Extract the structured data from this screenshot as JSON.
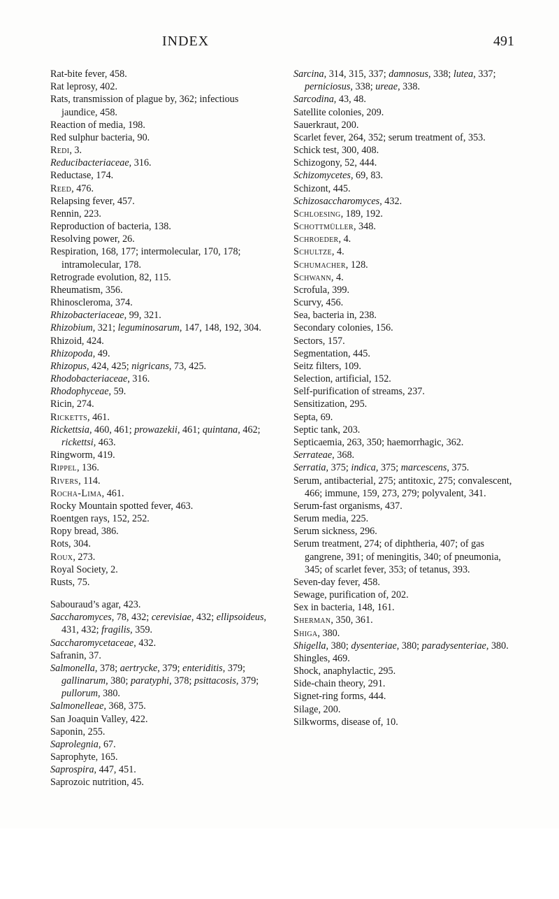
{
  "header": {
    "title": "INDEX",
    "page_number": "491"
  },
  "left_column": [
    {
      "segs": [
        {
          "t": "Rat-bite fever, 458."
        }
      ]
    },
    {
      "segs": [
        {
          "t": "Rat leprosy, 402."
        }
      ]
    },
    {
      "segs": [
        {
          "t": "Rats, transmission of plague by, 362; infectious jaundice, 458."
        }
      ]
    },
    {
      "segs": [
        {
          "t": "Reaction of media, 198."
        }
      ]
    },
    {
      "segs": [
        {
          "t": "Red sulphur bacteria, 90."
        }
      ]
    },
    {
      "segs": [
        {
          "t": "Redi",
          "cls": "sc"
        },
        {
          "t": ", 3."
        }
      ]
    },
    {
      "segs": [
        {
          "t": "Reducibacteriaceae",
          "cls": "italic"
        },
        {
          "t": ", 316."
        }
      ]
    },
    {
      "segs": [
        {
          "t": "Reductase, 174."
        }
      ]
    },
    {
      "segs": [
        {
          "t": "Reed",
          "cls": "sc"
        },
        {
          "t": ", 476."
        }
      ]
    },
    {
      "segs": [
        {
          "t": "Relapsing fever, 457."
        }
      ]
    },
    {
      "segs": [
        {
          "t": "Rennin, 223."
        }
      ]
    },
    {
      "segs": [
        {
          "t": "Reproduction of bacteria, 138."
        }
      ]
    },
    {
      "segs": [
        {
          "t": "Resolving power, 26."
        }
      ]
    },
    {
      "segs": [
        {
          "t": "Respiration, 168, 177; intermolecular, 170, 178; intramolecular, 178."
        }
      ]
    },
    {
      "segs": [
        {
          "t": "Retrograde evolution, 82, 115."
        }
      ]
    },
    {
      "segs": [
        {
          "t": "Rheumatism, 356."
        }
      ]
    },
    {
      "segs": [
        {
          "t": "Rhinoscleroma, 374."
        }
      ]
    },
    {
      "segs": [
        {
          "t": "Rhizobacteriaceae",
          "cls": "italic"
        },
        {
          "t": ", 99, 321."
        }
      ]
    },
    {
      "segs": [
        {
          "t": "Rhizobium",
          "cls": "italic"
        },
        {
          "t": ", 321; "
        },
        {
          "t": "leguminosarum",
          "cls": "italic"
        },
        {
          "t": ", 147, 148, 192, 304."
        }
      ]
    },
    {
      "segs": [
        {
          "t": "Rhizoid, 424."
        }
      ]
    },
    {
      "segs": [
        {
          "t": "Rhizopoda",
          "cls": "italic"
        },
        {
          "t": ", 49."
        }
      ]
    },
    {
      "segs": [
        {
          "t": "Rhizopus",
          "cls": "italic"
        },
        {
          "t": ", 424, 425; "
        },
        {
          "t": "nigricans",
          "cls": "italic"
        },
        {
          "t": ", 73, 425."
        }
      ]
    },
    {
      "segs": [
        {
          "t": "Rhodobacteriaceae",
          "cls": "italic"
        },
        {
          "t": ", 316."
        }
      ]
    },
    {
      "segs": [
        {
          "t": "Rhodophyceae",
          "cls": "italic"
        },
        {
          "t": ", 59."
        }
      ]
    },
    {
      "segs": [
        {
          "t": "Ricin, 274."
        }
      ]
    },
    {
      "segs": [
        {
          "t": "Ricketts",
          "cls": "sc"
        },
        {
          "t": ", 461."
        }
      ]
    },
    {
      "segs": [
        {
          "t": "Rickettsia",
          "cls": "italic"
        },
        {
          "t": ", 460, 461; "
        },
        {
          "t": "prowazekii",
          "cls": "italic"
        },
        {
          "t": ", 461; "
        },
        {
          "t": "quintana",
          "cls": "italic"
        },
        {
          "t": ", 462; "
        },
        {
          "t": "rickettsi",
          "cls": "italic"
        },
        {
          "t": ", 463."
        }
      ]
    },
    {
      "segs": [
        {
          "t": "Ringworm, 419."
        }
      ]
    },
    {
      "segs": [
        {
          "t": "Rippel",
          "cls": "sc"
        },
        {
          "t": ", 136."
        }
      ]
    },
    {
      "segs": [
        {
          "t": "Rivers",
          "cls": "sc"
        },
        {
          "t": ", 114."
        }
      ]
    },
    {
      "segs": [
        {
          "t": "Rocha-Lima",
          "cls": "sc"
        },
        {
          "t": ", 461."
        }
      ]
    },
    {
      "segs": [
        {
          "t": "Rocky Mountain spotted fever, 463."
        }
      ]
    },
    {
      "segs": [
        {
          "t": "Roentgen rays, 152, 252."
        }
      ]
    },
    {
      "segs": [
        {
          "t": "Ropy bread, 386."
        }
      ]
    },
    {
      "segs": [
        {
          "t": "Rots, 304."
        }
      ]
    },
    {
      "segs": [
        {
          "t": "Roux",
          "cls": "sc"
        },
        {
          "t": ", 273."
        }
      ]
    },
    {
      "segs": [
        {
          "t": "Royal Society, 2."
        }
      ]
    },
    {
      "segs": [
        {
          "t": "Rusts, 75."
        }
      ]
    },
    {
      "gap": true
    },
    {
      "segs": [
        {
          "t": "Sabouraud’s agar, 423."
        }
      ]
    },
    {
      "segs": [
        {
          "t": "Saccharomyces",
          "cls": "italic"
        },
        {
          "t": ", 78, 432; "
        },
        {
          "t": "cerevisiae",
          "cls": "italic"
        },
        {
          "t": ", 432; "
        },
        {
          "t": "ellipsoideus",
          "cls": "italic"
        },
        {
          "t": ", 431, 432; "
        },
        {
          "t": "fragilis",
          "cls": "italic"
        },
        {
          "t": ", 359."
        }
      ]
    },
    {
      "segs": [
        {
          "t": "Saccharomycetaceae",
          "cls": "italic"
        },
        {
          "t": ", 432."
        }
      ]
    },
    {
      "segs": [
        {
          "t": "Safranin, 37."
        }
      ]
    },
    {
      "segs": [
        {
          "t": "Salmonella",
          "cls": "italic"
        },
        {
          "t": ", 378; "
        },
        {
          "t": "aertrycke",
          "cls": "italic"
        },
        {
          "t": ", 379; "
        },
        {
          "t": "enteriditis",
          "cls": "italic"
        },
        {
          "t": ", 379; "
        },
        {
          "t": "gallinarum",
          "cls": "italic"
        },
        {
          "t": ", 380; "
        },
        {
          "t": "paratyphi",
          "cls": "italic"
        },
        {
          "t": ", 378; "
        },
        {
          "t": "psittacosis",
          "cls": "italic"
        },
        {
          "t": ", 379; "
        },
        {
          "t": "pullorum",
          "cls": "italic"
        },
        {
          "t": ", 380."
        }
      ]
    },
    {
      "segs": [
        {
          "t": "Salmonelleae",
          "cls": "italic"
        },
        {
          "t": ", 368, 375."
        }
      ]
    },
    {
      "segs": [
        {
          "t": "San Joaquin Valley, 422."
        }
      ]
    },
    {
      "segs": [
        {
          "t": "Saponin, 255."
        }
      ]
    },
    {
      "segs": [
        {
          "t": "Saprolegnia",
          "cls": "italic"
        },
        {
          "t": ", 67."
        }
      ]
    },
    {
      "segs": [
        {
          "t": "Saprophyte, 165."
        }
      ]
    },
    {
      "segs": [
        {
          "t": "Saprospira",
          "cls": "italic"
        },
        {
          "t": ", 447, 451."
        }
      ]
    },
    {
      "segs": [
        {
          "t": "Saprozoic nutrition, 45."
        }
      ]
    }
  ],
  "right_column": [
    {
      "segs": [
        {
          "t": "Sarcina",
          "cls": "italic"
        },
        {
          "t": ", 314, 315, 337; "
        },
        {
          "t": "damnosus",
          "cls": "italic"
        },
        {
          "t": ", 338; "
        },
        {
          "t": "lutea",
          "cls": "italic"
        },
        {
          "t": ", 337; "
        },
        {
          "t": "perniciosus",
          "cls": "italic"
        },
        {
          "t": ", 338; "
        },
        {
          "t": "ureae",
          "cls": "italic"
        },
        {
          "t": ", 338."
        }
      ]
    },
    {
      "segs": [
        {
          "t": "Sarcodina",
          "cls": "italic"
        },
        {
          "t": ", 43, 48."
        }
      ]
    },
    {
      "segs": [
        {
          "t": "Satellite colonies, 209."
        }
      ]
    },
    {
      "segs": [
        {
          "t": "Sauerkraut, 200."
        }
      ]
    },
    {
      "segs": [
        {
          "t": "Scarlet fever, 264, 352; serum treatment of, 353."
        }
      ]
    },
    {
      "segs": [
        {
          "t": "Schick test, 300, 408."
        }
      ]
    },
    {
      "segs": [
        {
          "t": "Schizogony, 52, 444."
        }
      ]
    },
    {
      "segs": [
        {
          "t": "Schizomycetes",
          "cls": "italic"
        },
        {
          "t": ", 69, 83."
        }
      ]
    },
    {
      "segs": [
        {
          "t": "Schizont, 445."
        }
      ]
    },
    {
      "segs": [
        {
          "t": "Schizosaccharomyces",
          "cls": "italic"
        },
        {
          "t": ", 432."
        }
      ]
    },
    {
      "segs": [
        {
          "t": "Schloesing",
          "cls": "sc"
        },
        {
          "t": ", 189, 192."
        }
      ]
    },
    {
      "segs": [
        {
          "t": "Schottmüller",
          "cls": "sc"
        },
        {
          "t": ", 348."
        }
      ]
    },
    {
      "segs": [
        {
          "t": "Schroeder",
          "cls": "sc"
        },
        {
          "t": ", 4."
        }
      ]
    },
    {
      "segs": [
        {
          "t": "Schultze",
          "cls": "sc"
        },
        {
          "t": ", 4."
        }
      ]
    },
    {
      "segs": [
        {
          "t": "Schumacher",
          "cls": "sc"
        },
        {
          "t": ", 128."
        }
      ]
    },
    {
      "segs": [
        {
          "t": "Schwann",
          "cls": "sc"
        },
        {
          "t": ", 4."
        }
      ]
    },
    {
      "segs": [
        {
          "t": "Scrofula, 399."
        }
      ]
    },
    {
      "segs": [
        {
          "t": "Scurvy, 456."
        }
      ]
    },
    {
      "segs": [
        {
          "t": "Sea, bacteria in, 238."
        }
      ]
    },
    {
      "segs": [
        {
          "t": "Secondary colonies, 156."
        }
      ]
    },
    {
      "segs": [
        {
          "t": "Sectors, 157."
        }
      ]
    },
    {
      "segs": [
        {
          "t": "Segmentation, 445."
        }
      ]
    },
    {
      "segs": [
        {
          "t": "Seitz filters, 109."
        }
      ]
    },
    {
      "segs": [
        {
          "t": "Selection, artificial, 152."
        }
      ]
    },
    {
      "segs": [
        {
          "t": "Self-purification of streams, 237."
        }
      ]
    },
    {
      "segs": [
        {
          "t": "Sensitization, 295."
        }
      ]
    },
    {
      "segs": [
        {
          "t": "Septa, 69."
        }
      ]
    },
    {
      "segs": [
        {
          "t": "Septic tank, 203."
        }
      ]
    },
    {
      "segs": [
        {
          "t": "Septicaemia, 263, 350; haemorrhagic, 362."
        }
      ]
    },
    {
      "segs": [
        {
          "t": "Serrateae",
          "cls": "italic"
        },
        {
          "t": ", 368."
        }
      ]
    },
    {
      "segs": [
        {
          "t": "Serratia",
          "cls": "italic"
        },
        {
          "t": ", 375; "
        },
        {
          "t": "indica",
          "cls": "italic"
        },
        {
          "t": ", 375; "
        },
        {
          "t": "marcescens",
          "cls": "italic"
        },
        {
          "t": ", 375."
        }
      ]
    },
    {
      "segs": [
        {
          "t": "Serum, antibacterial, 275; antitoxic, 275; convalescent, 466; immune, 159, 273, 279; polyvalent, 341."
        }
      ]
    },
    {
      "segs": [
        {
          "t": "Serum-fast organisms, 437."
        }
      ]
    },
    {
      "segs": [
        {
          "t": "Serum media, 225."
        }
      ]
    },
    {
      "segs": [
        {
          "t": "Serum sickness, 296."
        }
      ]
    },
    {
      "segs": [
        {
          "t": "Serum treatment, 274; of diphtheria, 407; of gas gangrene, 391; of meningitis, 340; of pneumonia, 345; of scarlet fever, 353; of tetanus, 393."
        }
      ]
    },
    {
      "segs": [
        {
          "t": "Seven-day fever, 458."
        }
      ]
    },
    {
      "segs": [
        {
          "t": "Sewage, purification of, 202."
        }
      ]
    },
    {
      "segs": [
        {
          "t": "Sex in bacteria, 148, 161."
        }
      ]
    },
    {
      "segs": [
        {
          "t": "Sherman",
          "cls": "sc"
        },
        {
          "t": ", 350, 361."
        }
      ]
    },
    {
      "segs": [
        {
          "t": "Shiga",
          "cls": "sc"
        },
        {
          "t": ", 380."
        }
      ]
    },
    {
      "segs": [
        {
          "t": "Shigella",
          "cls": "italic"
        },
        {
          "t": ", 380; "
        },
        {
          "t": "dysenteriae",
          "cls": "italic"
        },
        {
          "t": ", 380; "
        },
        {
          "t": "paradysenteriae",
          "cls": "italic"
        },
        {
          "t": ", 380."
        }
      ]
    },
    {
      "segs": [
        {
          "t": "Shingles, 469."
        }
      ]
    },
    {
      "segs": [
        {
          "t": "Shock, anaphylactic, 295."
        }
      ]
    },
    {
      "segs": [
        {
          "t": "Side-chain theory, 291."
        }
      ]
    },
    {
      "segs": [
        {
          "t": "Signet-ring forms, 444."
        }
      ]
    },
    {
      "segs": [
        {
          "t": "Silage, 200."
        }
      ]
    },
    {
      "segs": [
        {
          "t": "Silkworms, disease of, 10."
        }
      ]
    }
  ]
}
